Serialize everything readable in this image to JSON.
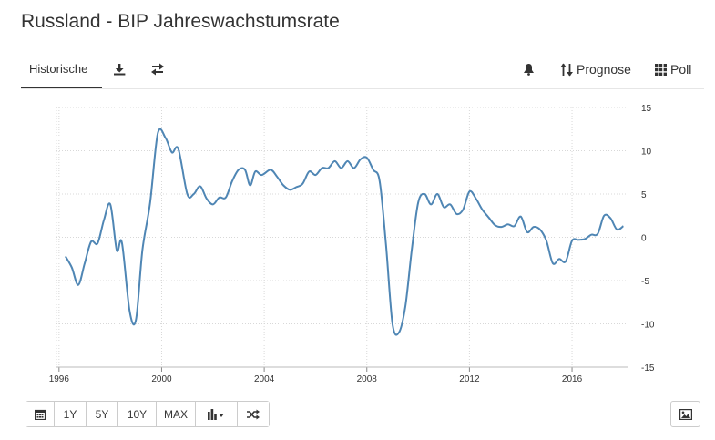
{
  "page": {
    "title": "Russland - BIP Jahreswachstumsrate"
  },
  "tabs": {
    "historical_label": "Historische",
    "forecast_label": "Prognose",
    "poll_label": "Poll"
  },
  "icons": {
    "download": "download-icon",
    "compare": "exchange-icon",
    "alert": "bell-icon",
    "forecast": "sort-arrows-icon",
    "poll": "grid-icon",
    "calendar": "calendar-icon",
    "chart_type": "bar-chart-icon",
    "random": "shuffle-icon",
    "image": "image-icon"
  },
  "toolbar": {
    "range_1y": "1Y",
    "range_5y": "5Y",
    "range_10y": "10Y",
    "range_max": "MAX"
  },
  "chart_data": {
    "type": "line",
    "title": "",
    "xlabel": "",
    "ylabel": "",
    "line_color": "#4f86b4",
    "grid": true,
    "grid_style": "dotted",
    "y_axis_position": "right",
    "xlim": [
      1995.9,
      2018.2
    ],
    "ylim": [
      -15,
      15
    ],
    "x_ticks": [
      1996,
      2000,
      2004,
      2008,
      2012,
      2016
    ],
    "y_ticks": [
      15,
      10,
      5,
      0,
      -5,
      -10,
      -15
    ],
    "series": [
      {
        "points": [
          [
            1996.25,
            -2.2
          ],
          [
            1996.5,
            -3.5
          ],
          [
            1996.75,
            -5.5
          ],
          [
            1997.0,
            -3.0
          ],
          [
            1997.25,
            -0.5
          ],
          [
            1997.5,
            -0.7
          ],
          [
            1997.75,
            2.0
          ],
          [
            1998.0,
            3.8
          ],
          [
            1998.25,
            -1.5
          ],
          [
            1998.45,
            -0.6
          ],
          [
            1998.75,
            -8.5
          ],
          [
            1999.0,
            -9.5
          ],
          [
            1999.25,
            -1.5
          ],
          [
            1999.55,
            4.0
          ],
          [
            1999.85,
            12.0
          ],
          [
            2000.15,
            11.5
          ],
          [
            2000.4,
            9.8
          ],
          [
            2000.65,
            10.2
          ],
          [
            2001.0,
            5.0
          ],
          [
            2001.25,
            5.0
          ],
          [
            2001.5,
            5.9
          ],
          [
            2001.75,
            4.5
          ],
          [
            2002.0,
            3.8
          ],
          [
            2002.25,
            4.6
          ],
          [
            2002.5,
            4.6
          ],
          [
            2002.75,
            6.5
          ],
          [
            2003.0,
            7.8
          ],
          [
            2003.25,
            7.8
          ],
          [
            2003.45,
            6.0
          ],
          [
            2003.65,
            7.6
          ],
          [
            2003.9,
            7.2
          ],
          [
            2004.25,
            7.8
          ],
          [
            2004.5,
            7.0
          ],
          [
            2004.75,
            6.0
          ],
          [
            2005.0,
            5.5
          ],
          [
            2005.25,
            5.8
          ],
          [
            2005.5,
            6.2
          ],
          [
            2005.75,
            7.6
          ],
          [
            2006.0,
            7.2
          ],
          [
            2006.25,
            8.0
          ],
          [
            2006.5,
            8.0
          ],
          [
            2006.75,
            8.8
          ],
          [
            2007.0,
            8.0
          ],
          [
            2007.25,
            8.8
          ],
          [
            2007.5,
            8.0
          ],
          [
            2007.75,
            9.0
          ],
          [
            2008.0,
            9.2
          ],
          [
            2008.25,
            7.8
          ],
          [
            2008.5,
            6.5
          ],
          [
            2008.75,
            -1.0
          ],
          [
            2009.0,
            -10.0
          ],
          [
            2009.25,
            -11.0
          ],
          [
            2009.5,
            -8.0
          ],
          [
            2009.75,
            -1.5
          ],
          [
            2010.0,
            4.0
          ],
          [
            2010.25,
            5.0
          ],
          [
            2010.5,
            3.8
          ],
          [
            2010.75,
            5.0
          ],
          [
            2011.0,
            3.5
          ],
          [
            2011.25,
            3.8
          ],
          [
            2011.5,
            2.7
          ],
          [
            2011.75,
            3.2
          ],
          [
            2012.0,
            5.3
          ],
          [
            2012.25,
            4.5
          ],
          [
            2012.5,
            3.2
          ],
          [
            2012.75,
            2.3
          ],
          [
            2013.0,
            1.4
          ],
          [
            2013.25,
            1.2
          ],
          [
            2013.5,
            1.5
          ],
          [
            2013.75,
            1.3
          ],
          [
            2014.0,
            2.4
          ],
          [
            2014.25,
            0.6
          ],
          [
            2014.5,
            1.2
          ],
          [
            2014.75,
            0.9
          ],
          [
            2015.0,
            -0.4
          ],
          [
            2015.25,
            -3.0
          ],
          [
            2015.5,
            -2.5
          ],
          [
            2015.75,
            -2.8
          ],
          [
            2016.0,
            -0.4
          ],
          [
            2016.25,
            -0.3
          ],
          [
            2016.5,
            -0.2
          ],
          [
            2016.75,
            0.3
          ],
          [
            2017.0,
            0.4
          ],
          [
            2017.25,
            2.5
          ],
          [
            2017.5,
            2.2
          ],
          [
            2017.75,
            0.9
          ],
          [
            2018.0,
            1.3
          ]
        ]
      }
    ]
  }
}
